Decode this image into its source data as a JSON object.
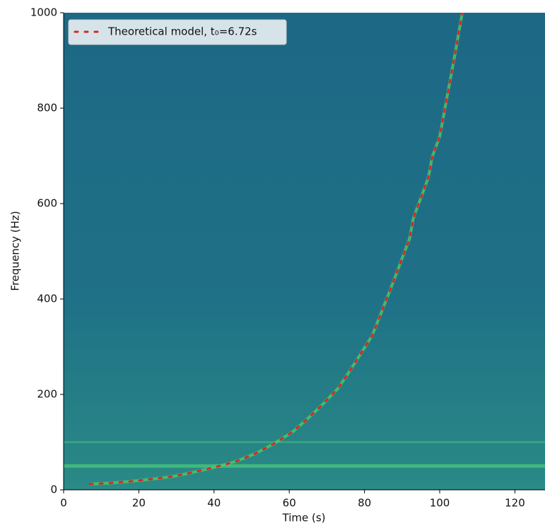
{
  "chart_data": {
    "type": "line",
    "xlabel": "Time (s)",
    "ylabel": "Frequency (Hz)",
    "xlim": [
      0,
      128
    ],
    "xticks": [
      0,
      20,
      40,
      60,
      80,
      100,
      120
    ],
    "ylim": [
      0,
      1000
    ],
    "yticks": [
      0,
      200,
      400,
      600,
      800,
      1000
    ],
    "bands": [
      50,
      100
    ],
    "legend": "upper left",
    "series": [
      {
        "name": "Theoretical model, t₀=6.72s",
        "color": "#d62728",
        "x": [
          7,
          12,
          18,
          23,
          29,
          34,
          40,
          46,
          51,
          56,
          61,
          65,
          69,
          73,
          76,
          79,
          82,
          84,
          86,
          88,
          90,
          92,
          93,
          95,
          97,
          98,
          100,
          101,
          102,
          103,
          104,
          105,
          106
        ],
        "values": [
          12,
          14,
          18,
          22,
          28,
          36,
          47,
          60,
          76,
          97,
          122,
          150,
          180,
          213,
          248,
          285,
          323,
          362,
          402,
          443,
          485,
          527,
          570,
          612,
          655,
          698,
          740,
          783,
          826,
          868,
          910,
          955,
          1000
        ]
      }
    ]
  }
}
